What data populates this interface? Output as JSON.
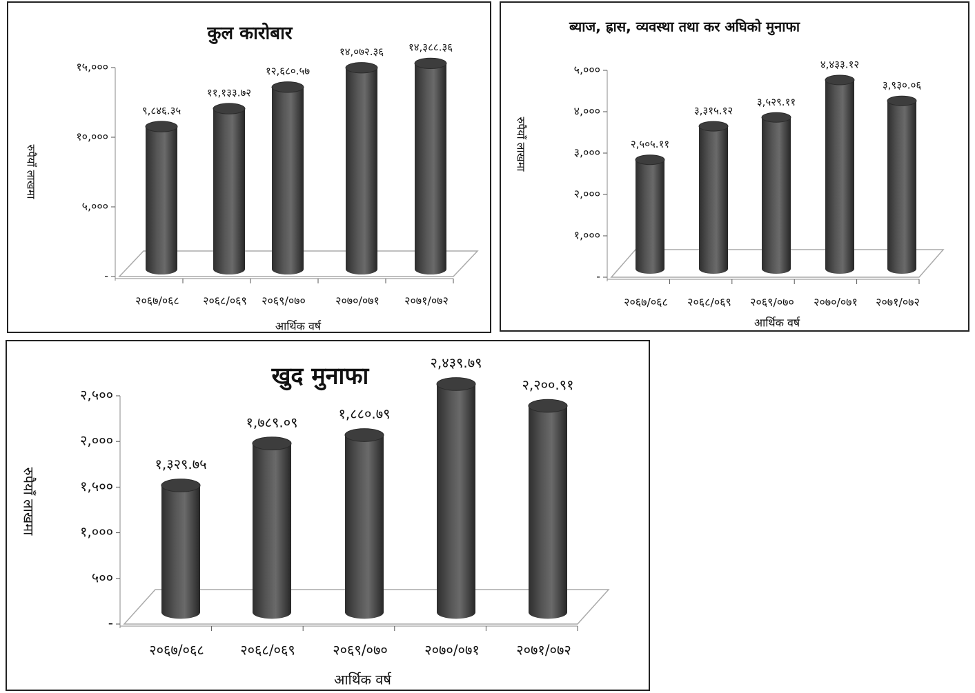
{
  "chart_data": [
    {
      "type": "bar",
      "title": "कुल कारोबार",
      "y_label": "रुपैयाँ लाखमा",
      "x_label": "आर्थिक वर्ष",
      "categories": [
        "२०६७/०६८",
        "२०६८/०६९",
        "२०६९/०७०",
        "२०७०/०७१",
        "२०७१/०७२"
      ],
      "values": [
        9846.35,
        11133.72,
        12680.57,
        14072.36,
        14388.36
      ],
      "value_labels": [
        "९,८४६.३५",
        "११,१३३.७२",
        "१२,६८०.५७",
        "१४,०७२.३६",
        "१४,३८८.३६"
      ],
      "color": "#555555",
      "ylim": [
        0,
        15000
      ],
      "yticks": [
        {
          "value": 0,
          "label": "-"
        },
        {
          "value": 5000,
          "label": "५,०००"
        },
        {
          "value": 10000,
          "label": "१०,०००"
        },
        {
          "value": 15000,
          "label": "१५,०००"
        }
      ]
    },
    {
      "type": "bar",
      "title": "ब्याज, ह्रास, व्यवस्था तथा कर अघिको मुनाफा",
      "y_label": "रुपैयाँ लाखमा",
      "x_label": "आर्थिक वर्ष",
      "categories": [
        "२०६७/०६८",
        "२०६८/०६९",
        "२०६९/०७०",
        "२०७०/०७१",
        "२०७१/०७२"
      ],
      "values": [
        2505.11,
        3315.12,
        3529.11,
        4433.12,
        3930.06
      ],
      "value_labels": [
        "२,५०५.११",
        "३,३१५.१२",
        "३,५२९.११",
        "४,४३३.१२",
        "३,९३०.०६"
      ],
      "color": "#555555",
      "ylim": [
        0,
        5000
      ],
      "yticks": [
        {
          "value": 0,
          "label": "-"
        },
        {
          "value": 1000,
          "label": "१,०००"
        },
        {
          "value": 2000,
          "label": "२,०००"
        },
        {
          "value": 3000,
          "label": "३,०००"
        },
        {
          "value": 4000,
          "label": "४,०००"
        },
        {
          "value": 5000,
          "label": "५,०००"
        }
      ]
    },
    {
      "type": "bar",
      "title": "खुद मुनाफा",
      "y_label": "रुपैयाँ लाखमा",
      "x_label": "आर्थिक वर्ष",
      "categories": [
        "२०६७/०६८",
        "२०६८/०६९",
        "२०६९/०७०",
        "२०७०/०७१",
        "२०७१/०७२"
      ],
      "values": [
        1329.75,
        1789.09,
        1880.79,
        2439.79,
        2200.91
      ],
      "value_labels": [
        "१,३२९.७५",
        "१,७८९.०९",
        "१,८८०.७९",
        "२,४३९.७९",
        "२,२००.९१"
      ],
      "color": "#555555",
      "ylim": [
        0,
        2500
      ],
      "yticks": [
        {
          "value": 0,
          "label": "-"
        },
        {
          "value": 500,
          "label": "५००"
        },
        {
          "value": 1000,
          "label": "१,०००"
        },
        {
          "value": 1500,
          "label": "१,५००"
        },
        {
          "value": 2000,
          "label": "२,०००"
        },
        {
          "value": 2500,
          "label": "२,५००"
        }
      ]
    }
  ]
}
